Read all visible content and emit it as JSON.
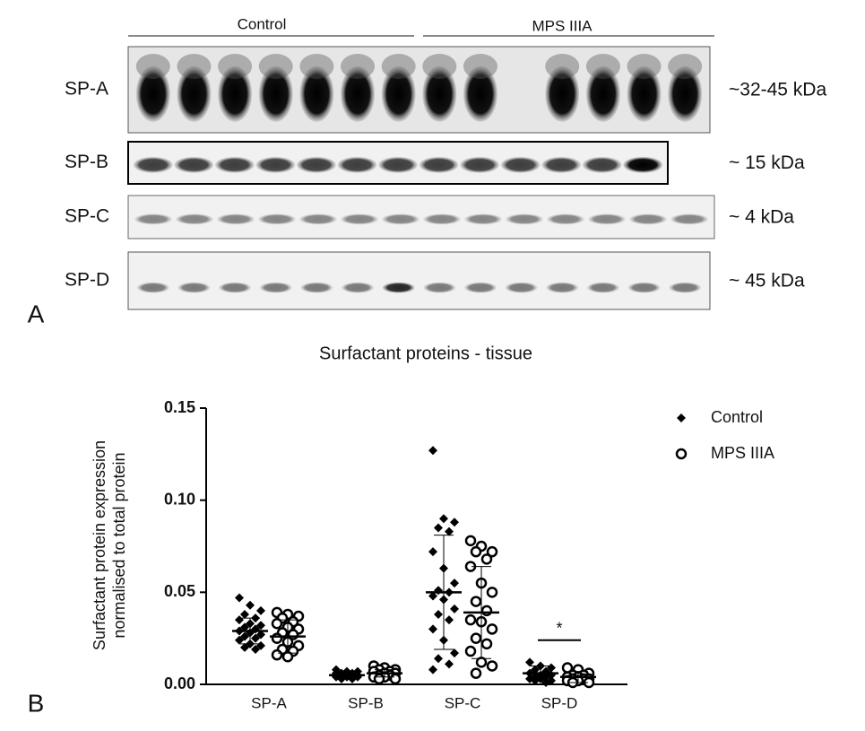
{
  "figure": {
    "panel_labels": [
      "A",
      "B"
    ],
    "groups": [
      "Control",
      "MPS IIIA"
    ],
    "blot_rows": [
      {
        "name": "SP-A",
        "size": "~32-45 kDa"
      },
      {
        "name": "SP-B",
        "size": "~ 15 kDa"
      },
      {
        "name": "SP-C",
        "size": "~ 4 kDa"
      },
      {
        "name": "SP-D",
        "size": "~ 45 kDa"
      }
    ]
  },
  "chart_data": {
    "type": "strip",
    "title": "Surfactant proteins - tissue",
    "y_label": [
      "Surfactant protein expression",
      "normalised to total protein"
    ],
    "categories": [
      "SP-A",
      "SP-B",
      "SP-C",
      "SP-D"
    ],
    "ylim": [
      0,
      0.15
    ],
    "yticks": [
      {
        "value": 0,
        "label": "0.00"
      },
      {
        "value": 0.05,
        "label": "0.05"
      },
      {
        "value": 0.1,
        "label": "0.10"
      },
      {
        "value": 0.15,
        "label": "0.15"
      }
    ],
    "legend": "upper right",
    "series": [
      {
        "name": "Control",
        "color": "#000000",
        "marker": "diamond",
        "values": [
          [
            0.047,
            0.043,
            0.04,
            0.038,
            0.036,
            0.035,
            0.033,
            0.032,
            0.031,
            0.03,
            0.029,
            0.028,
            0.027,
            0.026,
            0.025,
            0.024,
            0.022,
            0.021,
            0.02,
            0.019
          ],
          [
            0.008,
            0.007,
            0.007,
            0.006,
            0.006,
            0.006,
            0.005,
            0.005,
            0.005,
            0.004,
            0.004,
            0.004,
            0.004,
            0.003,
            0.003
          ],
          [
            0.127,
            0.09,
            0.088,
            0.085,
            0.083,
            0.072,
            0.063,
            0.055,
            0.051,
            0.05,
            0.048,
            0.046,
            0.041,
            0.038,
            0.035,
            0.03,
            0.024,
            0.017,
            0.014,
            0.011,
            0.008
          ],
          [
            0.012,
            0.01,
            0.009,
            0.008,
            0.007,
            0.006,
            0.005,
            0.005,
            0.004,
            0.004,
            0.003,
            0.003,
            0.002,
            0.002,
            0.001
          ]
        ],
        "mean": [
          0.029,
          0.005,
          0.05,
          0.006
        ],
        "sd": [
          0.007,
          0.001,
          0.031,
          0.004
        ]
      },
      {
        "name": "MPS IIIA",
        "color": "#000000",
        "marker": "open-circle",
        "values": [
          [
            0.039,
            0.038,
            0.037,
            0.036,
            0.034,
            0.033,
            0.031,
            0.03,
            0.028,
            0.027,
            0.025,
            0.023,
            0.021,
            0.019,
            0.018,
            0.016,
            0.015
          ],
          [
            0.01,
            0.009,
            0.008,
            0.008,
            0.007,
            0.007,
            0.006,
            0.006,
            0.005,
            0.005,
            0.004,
            0.004,
            0.003,
            0.003
          ],
          [
            0.078,
            0.075,
            0.072,
            0.072,
            0.068,
            0.064,
            0.055,
            0.05,
            0.045,
            0.04,
            0.035,
            0.034,
            0.03,
            0.025,
            0.022,
            0.018,
            0.012,
            0.01,
            0.006
          ],
          [
            0.009,
            0.008,
            0.006,
            0.005,
            0.005,
            0.004,
            0.004,
            0.003,
            0.003,
            0.003,
            0.002,
            0.002,
            0.001,
            0.001
          ]
        ],
        "mean": [
          0.026,
          0.006,
          0.039,
          0.004
        ],
        "sd": [
          0.009,
          0.002,
          0.025,
          0.003
        ]
      }
    ],
    "annotations": [
      {
        "text": "*",
        "category": "SP-D",
        "y": 0.024
      }
    ]
  }
}
